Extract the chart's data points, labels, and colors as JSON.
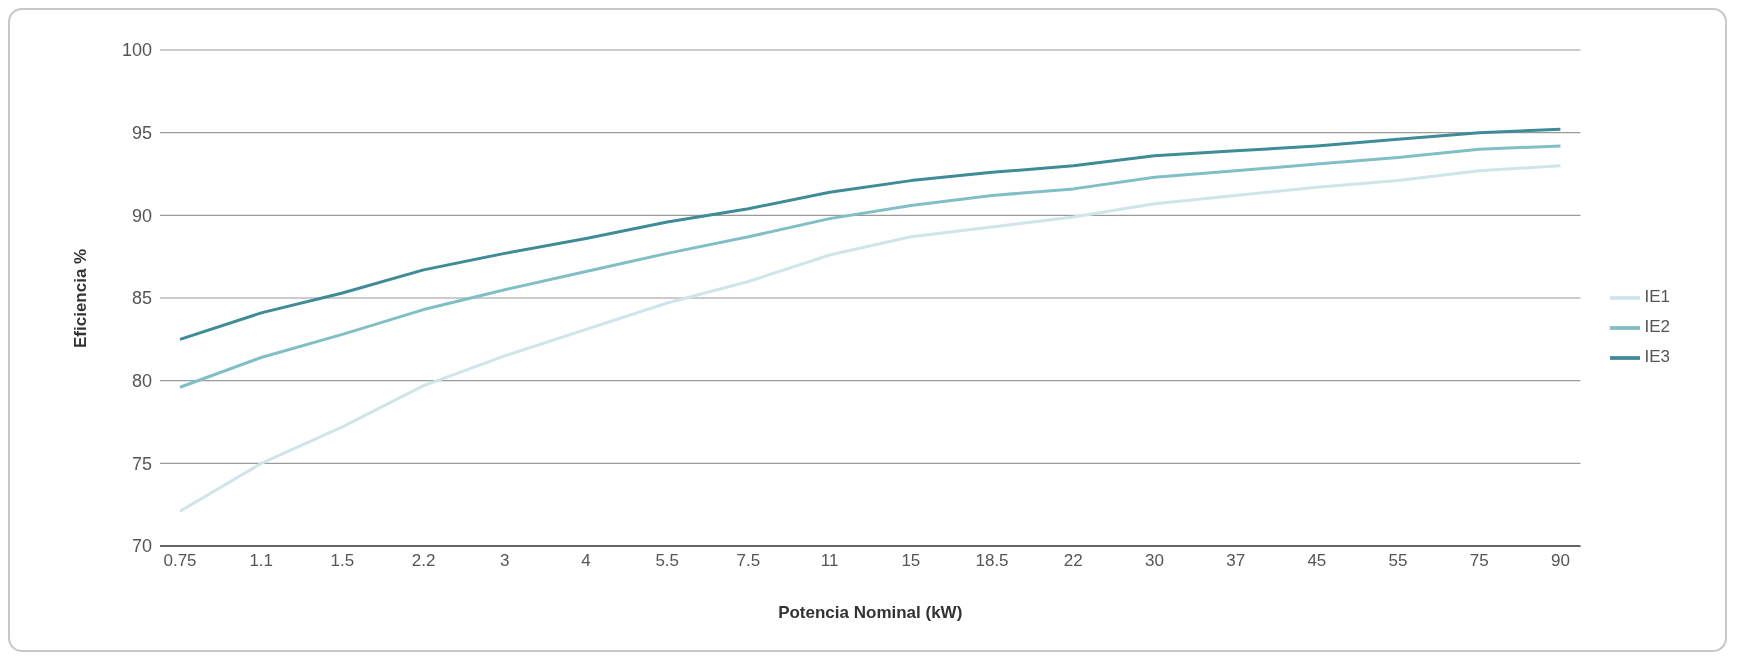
{
  "chart_data": {
    "type": "line",
    "xlabel": "Potencia Nominal (kW)",
    "ylabel": "Eficiencia %",
    "categories": [
      "0.75",
      "1.1",
      "1.5",
      "2.2",
      "3",
      "4",
      "5.5",
      "7.5",
      "11",
      "15",
      "18.5",
      "22",
      "30",
      "37",
      "45",
      "55",
      "75",
      "90"
    ],
    "series": [
      {
        "name": "IE1",
        "color": "#cfe5e8",
        "values": [
          72.1,
          75.0,
          77.2,
          79.7,
          81.5,
          83.1,
          84.7,
          86.0,
          87.6,
          88.7,
          89.3,
          89.9,
          90.7,
          91.2,
          91.7,
          92.1,
          92.7,
          93.0
        ]
      },
      {
        "name": "IE2",
        "color": "#80bfc5",
        "values": [
          79.6,
          81.4,
          82.8,
          84.3,
          85.5,
          86.6,
          87.7,
          88.7,
          89.8,
          90.6,
          91.2,
          91.6,
          92.3,
          92.7,
          93.1,
          93.5,
          94.0,
          94.2
        ]
      },
      {
        "name": "IE3",
        "color": "#3e8c96",
        "values": [
          82.5,
          84.1,
          85.3,
          86.7,
          87.7,
          88.6,
          89.6,
          90.4,
          91.4,
          92.1,
          92.6,
          93.0,
          93.6,
          93.9,
          94.2,
          94.6,
          95.0,
          95.2
        ]
      }
    ],
    "ylim": [
      70,
      100
    ],
    "yticks": [
      70,
      75,
      80,
      85,
      90,
      95,
      100
    ],
    "grid": "y",
    "legend": "right",
    "marker": "none",
    "line_style": "solid"
  }
}
